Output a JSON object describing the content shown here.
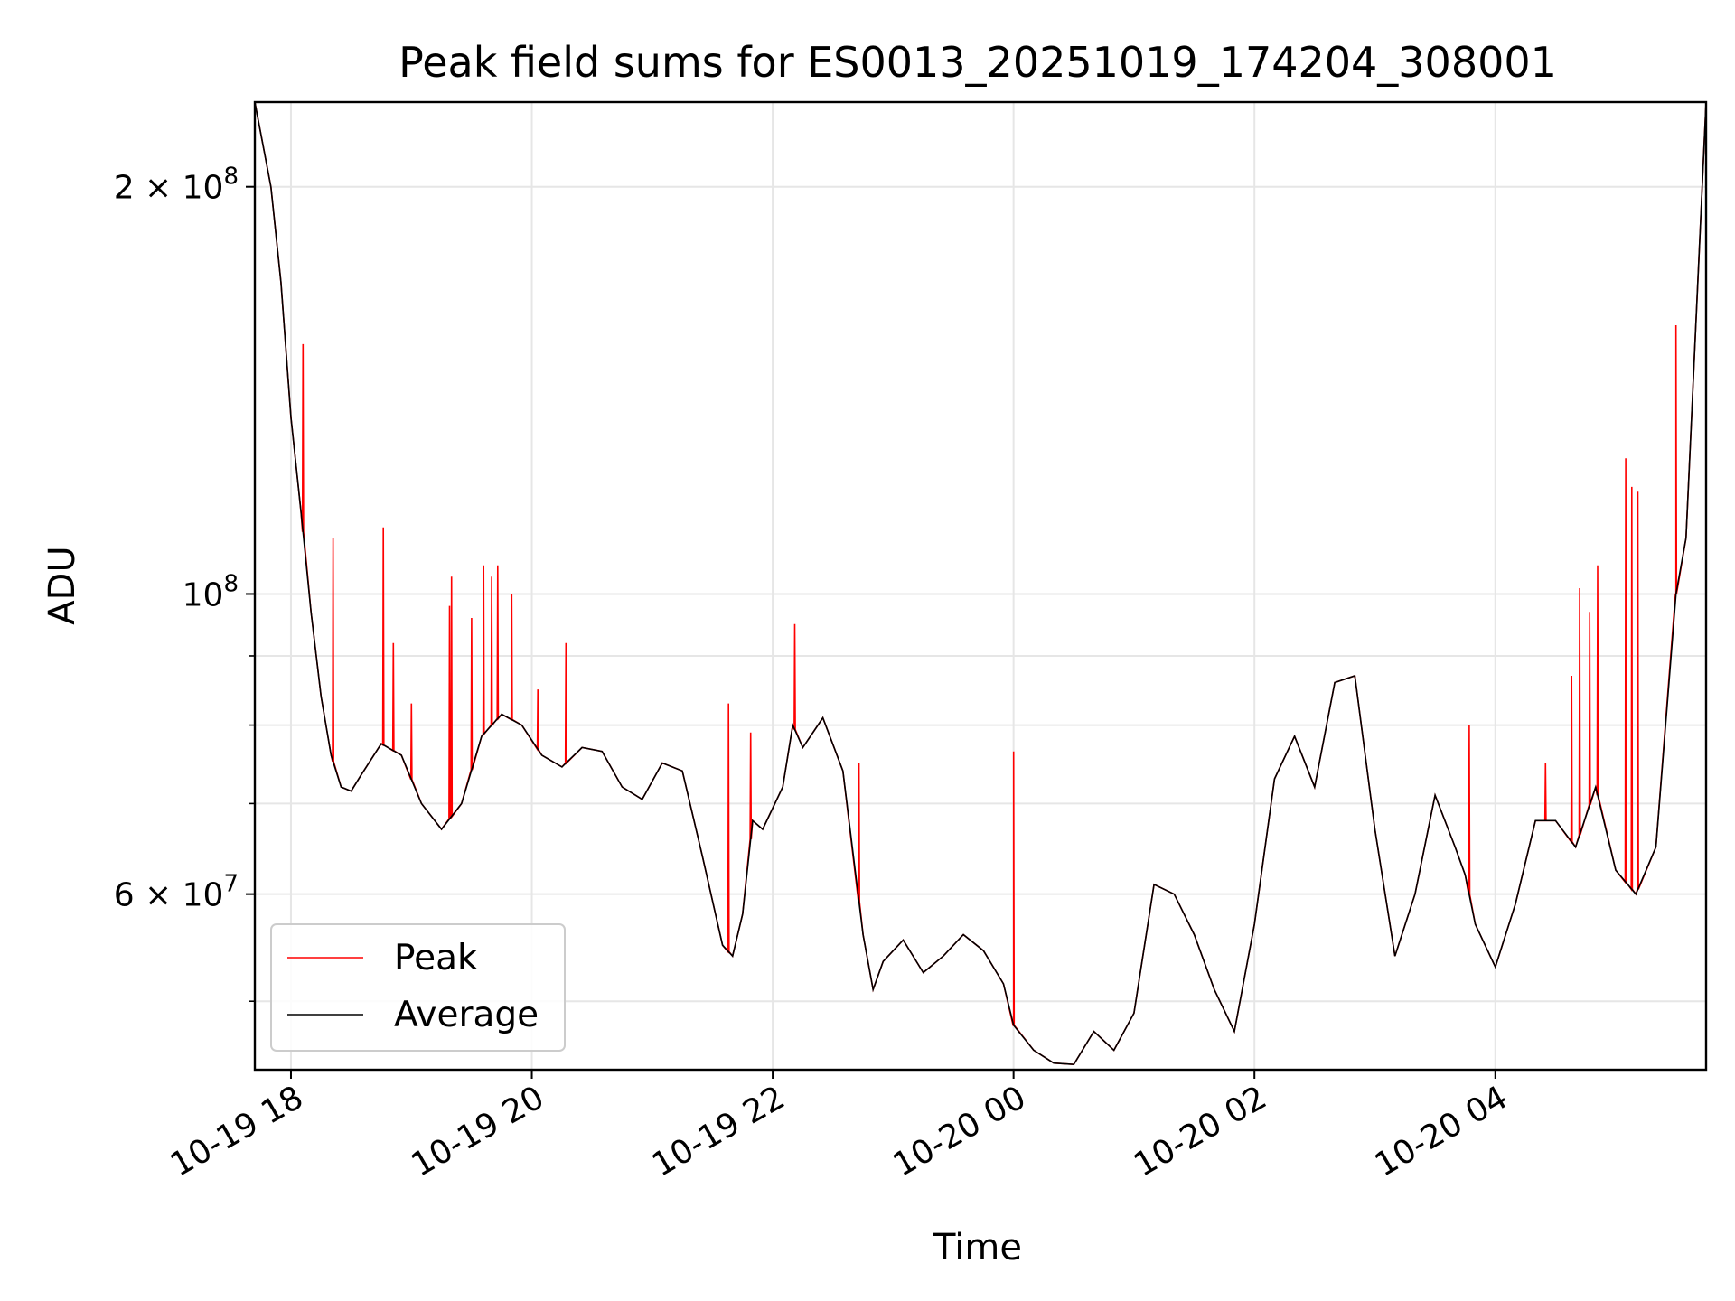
{
  "chart_data": {
    "type": "line",
    "title": "Peak field sums for ES0013_20251019_174204_308001",
    "xlabel": "Time",
    "ylabel": "ADU",
    "y_scale": "log",
    "ylim": [
      44500000,
      231000000
    ],
    "xlim": [
      "2025-10-19 17:42",
      "2025-10-20 05:45"
    ],
    "grid": true,
    "legend_position": "lower-left",
    "x_ticks": [
      {
        "time": "2025-10-19 18:00",
        "label": "10-19 18"
      },
      {
        "time": "2025-10-19 20:00",
        "label": "10-19 20"
      },
      {
        "time": "2025-10-19 22:00",
        "label": "10-19 22"
      },
      {
        "time": "2025-10-20 00:00",
        "label": "10-20 00"
      },
      {
        "time": "2025-10-20 02:00",
        "label": "10-20 02"
      },
      {
        "time": "2025-10-20 04:00",
        "label": "10-20 04"
      }
    ],
    "y_ticks_major": [
      {
        "value": 60000000,
        "mantissa": "6",
        "exponent": "7",
        "style": "sci"
      },
      {
        "value": 100000000,
        "mantissa": "",
        "exponent": "8",
        "style": "pow"
      },
      {
        "value": 200000000,
        "mantissa": "2",
        "exponent": "8",
        "style": "sci"
      }
    ],
    "y_ticks_minor": [
      50000000,
      70000000,
      80000000,
      90000000
    ],
    "x": [
      "2025-10-19 17:42",
      "2025-10-19 17:50",
      "2025-10-19 17:55",
      "2025-10-19 18:00",
      "2025-10-19 18:05",
      "2025-10-19 18:10",
      "2025-10-19 18:15",
      "2025-10-19 18:20",
      "2025-10-19 18:25",
      "2025-10-19 18:30",
      "2025-10-19 18:35",
      "2025-10-19 18:45",
      "2025-10-19 18:55",
      "2025-10-19 19:05",
      "2025-10-19 19:15",
      "2025-10-19 19:25",
      "2025-10-19 19:35",
      "2025-10-19 19:45",
      "2025-10-19 19:55",
      "2025-10-19 20:05",
      "2025-10-19 20:15",
      "2025-10-19 20:25",
      "2025-10-19 20:35",
      "2025-10-19 20:45",
      "2025-10-19 20:55",
      "2025-10-19 21:05",
      "2025-10-19 21:15",
      "2025-10-19 21:25",
      "2025-10-19 21:35",
      "2025-10-19 21:40",
      "2025-10-19 21:45",
      "2025-10-19 21:50",
      "2025-10-19 21:55",
      "2025-10-19 22:05",
      "2025-10-19 22:10",
      "2025-10-19 22:15",
      "2025-10-19 22:25",
      "2025-10-19 22:35",
      "2025-10-19 22:45",
      "2025-10-19 22:50",
      "2025-10-19 22:55",
      "2025-10-19 23:05",
      "2025-10-19 23:15",
      "2025-10-19 23:25",
      "2025-10-19 23:35",
      "2025-10-19 23:45",
      "2025-10-19 23:55",
      "2025-10-20 00:00",
      "2025-10-20 00:10",
      "2025-10-20 00:20",
      "2025-10-20 00:30",
      "2025-10-20 00:40",
      "2025-10-20 00:50",
      "2025-10-20 01:00",
      "2025-10-20 01:10",
      "2025-10-20 01:20",
      "2025-10-20 01:30",
      "2025-10-20 01:40",
      "2025-10-20 01:50",
      "2025-10-20 02:00",
      "2025-10-20 02:10",
      "2025-10-20 02:20",
      "2025-10-20 02:30",
      "2025-10-20 02:40",
      "2025-10-20 02:50",
      "2025-10-20 03:00",
      "2025-10-20 03:10",
      "2025-10-20 03:20",
      "2025-10-20 03:30",
      "2025-10-20 03:40",
      "2025-10-20 03:45",
      "2025-10-20 03:50",
      "2025-10-20 04:00",
      "2025-10-20 04:10",
      "2025-10-20 04:20",
      "2025-10-20 04:30",
      "2025-10-20 04:40",
      "2025-10-20 04:50",
      "2025-10-20 05:00",
      "2025-10-20 05:10",
      "2025-10-20 05:20",
      "2025-10-20 05:30",
      "2025-10-20 05:35",
      "2025-10-20 05:45"
    ],
    "series": [
      {
        "name": "Average",
        "color": "#000000",
        "values": [
          231000000,
          200000000,
          170000000,
          135000000,
          115000000,
          97000000,
          84000000,
          76000000,
          72000000,
          71500000,
          73500000,
          77500000,
          76000000,
          70000000,
          67000000,
          70000000,
          78500000,
          81500000,
          80000000,
          76000000,
          74500000,
          77000000,
          76500000,
          72000000,
          70500000,
          75000000,
          74000000,
          64000000,
          55000000,
          54000000,
          58000000,
          68000000,
          67000000,
          72000000,
          80000000,
          77000000,
          81000000,
          74000000,
          56000000,
          51000000,
          53500000,
          55500000,
          52500000,
          54000000,
          56000000,
          54500000,
          51500000,
          48000000,
          46000000,
          45000000,
          44900000,
          47500000,
          46000000,
          49000000,
          61000000,
          60000000,
          56000000,
          51000000,
          47500000,
          57000000,
          73000000,
          78500000,
          72000000,
          86000000,
          87000000,
          67000000,
          54000000,
          60000000,
          71000000,
          65000000,
          62000000,
          57000000,
          53000000,
          59000000,
          68000000,
          68000000,
          65000000,
          72000000,
          62500000,
          60000000,
          65000000,
          100000000,
          110000000,
          231000000
        ]
      },
      {
        "name": "Peak",
        "color": "#ff0000",
        "values": [
          231000000,
          200000000,
          170000000,
          135000000,
          115000000,
          97000000,
          84000000,
          76000000,
          72000000,
          71500000,
          73500000,
          77500000,
          76000000,
          70000000,
          67000000,
          70000000,
          78500000,
          81500000,
          80000000,
          76000000,
          74500000,
          77000000,
          76500000,
          72000000,
          70500000,
          75000000,
          74000000,
          64000000,
          55000000,
          54000000,
          58000000,
          68000000,
          67000000,
          72000000,
          80000000,
          77000000,
          81000000,
          74000000,
          56000000,
          51000000,
          53500000,
          55500000,
          52500000,
          54000000,
          56000000,
          54500000,
          51500000,
          48000000,
          46000000,
          45000000,
          44900000,
          47500000,
          46000000,
          49000000,
          61000000,
          60000000,
          56000000,
          51000000,
          47500000,
          57000000,
          73000000,
          78500000,
          72000000,
          86000000,
          87000000,
          67000000,
          54000000,
          60000000,
          71000000,
          65000000,
          62000000,
          57000000,
          53000000,
          59000000,
          68000000,
          68000000,
          65000000,
          72000000,
          62500000,
          60000000,
          65000000,
          100000000,
          110000000,
          231000000
        ],
        "spikes": [
          {
            "time": "2025-10-19 18:06",
            "value": 153000000
          },
          {
            "time": "2025-10-19 18:21",
            "value": 110000000
          },
          {
            "time": "2025-10-19 18:46",
            "value": 112000000
          },
          {
            "time": "2025-10-19 18:51",
            "value": 92000000
          },
          {
            "time": "2025-10-19 19:00",
            "value": 83000000
          },
          {
            "time": "2025-10-19 19:19",
            "value": 98000000
          },
          {
            "time": "2025-10-19 19:20",
            "value": 103000000
          },
          {
            "time": "2025-10-19 19:30",
            "value": 96000000
          },
          {
            "time": "2025-10-19 19:36",
            "value": 105000000
          },
          {
            "time": "2025-10-19 19:40",
            "value": 103000000
          },
          {
            "time": "2025-10-19 19:43",
            "value": 105000000
          },
          {
            "time": "2025-10-19 19:50",
            "value": 100000000
          },
          {
            "time": "2025-10-19 20:03",
            "value": 85000000
          },
          {
            "time": "2025-10-19 20:17",
            "value": 92000000
          },
          {
            "time": "2025-10-19 21:38",
            "value": 83000000
          },
          {
            "time": "2025-10-19 21:49",
            "value": 79000000
          },
          {
            "time": "2025-10-19 22:11",
            "value": 95000000
          },
          {
            "time": "2025-10-19 22:43",
            "value": 75000000
          },
          {
            "time": "2025-10-20 00:00",
            "value": 76500000
          },
          {
            "time": "2025-10-20 03:47",
            "value": 80000000
          },
          {
            "time": "2025-10-20 04:25",
            "value": 75000000
          },
          {
            "time": "2025-10-20 04:38",
            "value": 87000000
          },
          {
            "time": "2025-10-20 04:42",
            "value": 101000000
          },
          {
            "time": "2025-10-20 04:47",
            "value": 97000000
          },
          {
            "time": "2025-10-20 04:51",
            "value": 105000000
          },
          {
            "time": "2025-10-20 05:05",
            "value": 126000000
          },
          {
            "time": "2025-10-20 05:08",
            "value": 120000000
          },
          {
            "time": "2025-10-20 05:11",
            "value": 119000000
          },
          {
            "time": "2025-10-20 05:30",
            "value": 158000000
          }
        ]
      }
    ]
  }
}
